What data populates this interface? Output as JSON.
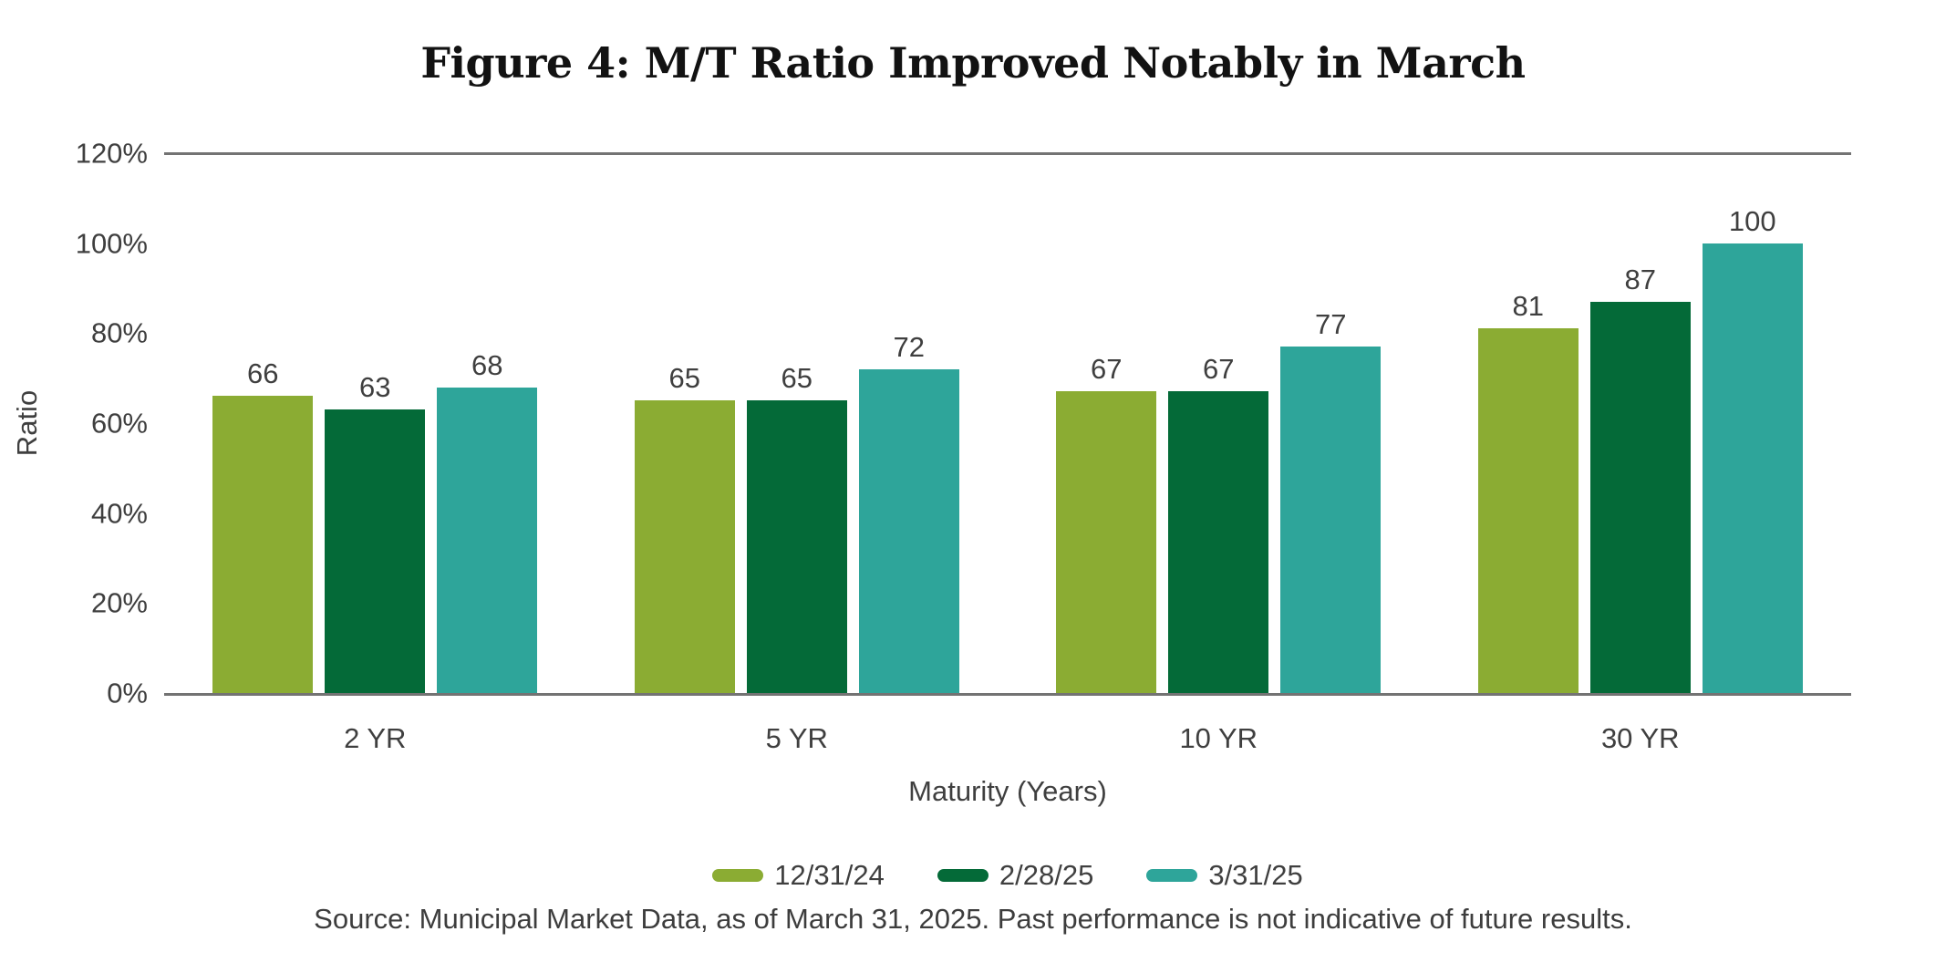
{
  "figure": {
    "source_note": "Source: Municipal Market Data, as of March 31, 2025. Past performance is not indicative of future results."
  },
  "chart_data": {
    "type": "bar",
    "title": "Figure 4: M/T Ratio Improved Notably in March",
    "categories": [
      "2 YR",
      "5 YR",
      "10 YR",
      "30 YR"
    ],
    "series": [
      {
        "name": "12/31/24",
        "color": "#8BAC33",
        "values": [
          66,
          65,
          67,
          81
        ]
      },
      {
        "name": "2/28/25",
        "color": "#046A38",
        "values": [
          63,
          65,
          67,
          87
        ]
      },
      {
        "name": "3/31/25",
        "color": "#2EA59A",
        "values": [
          68,
          72,
          77,
          100
        ]
      }
    ],
    "xlabel": "Maturity (Years)",
    "ylabel": "Ratio",
    "ylim": [
      0,
      120
    ],
    "y_ticks": [
      0,
      20,
      40,
      60,
      80,
      100,
      120
    ],
    "y_tick_suffix": "%",
    "grid": "top-line-only",
    "legend_position": "bottom",
    "bar_value_labels": true,
    "colors": {
      "axis_line": "#737373",
      "text": "#3F3F3F",
      "title_text": "#121212",
      "background": "#FFFFFF"
    }
  }
}
